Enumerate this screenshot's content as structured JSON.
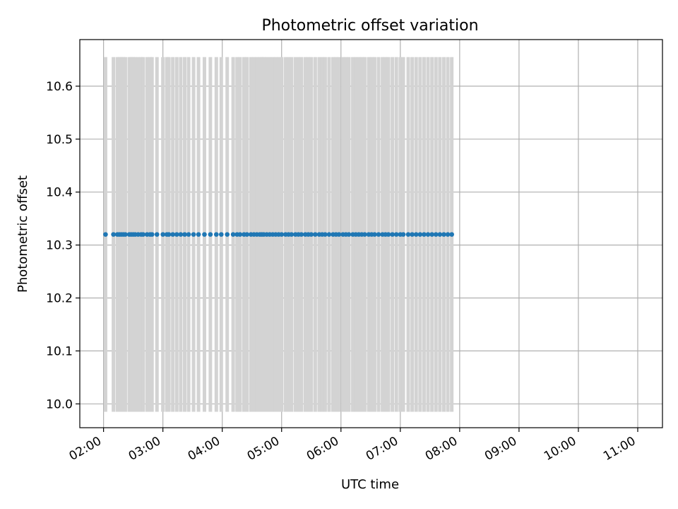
{
  "chart_data": {
    "type": "scatter",
    "title": "Photometric offset variation",
    "xlabel": "UTC time",
    "ylabel": "Photometric offset",
    "x_unit": "time (UTC, HH:MM)",
    "xlim": [
      "01:36",
      "11:25"
    ],
    "ylim": [
      9.955,
      10.688
    ],
    "x_ticks": [
      "02:00",
      "03:00",
      "04:00",
      "05:00",
      "06:00",
      "07:00",
      "08:00",
      "09:00",
      "10:00",
      "11:00"
    ],
    "y_ticks": [
      "10.0",
      "10.1",
      "10.2",
      "10.3",
      "10.4",
      "10.5",
      "10.6"
    ],
    "grid": true,
    "colors": {
      "points": "#1f77b4",
      "error_bars": "#d3d3d3",
      "grid": "#b0b0b0",
      "axes": "#000000"
    },
    "series": [
      {
        "value": 10.32,
        "error": 0.335,
        "times": [
          "02:02",
          "02:10",
          "02:14",
          "02:16",
          "02:18",
          "02:20",
          "02:22",
          "02:26",
          "02:28",
          "02:30",
          "02:32",
          "02:35",
          "02:38",
          "02:40",
          "02:44",
          "02:47",
          "02:49",
          "02:54",
          "03:00",
          "03:04",
          "03:06",
          "03:10",
          "03:14",
          "03:18",
          "03:22",
          "03:26",
          "03:31",
          "03:36",
          "03:42",
          "03:48",
          "03:54",
          "03:59",
          "04:05",
          "04:11",
          "04:15",
          "04:18",
          "04:22",
          "04:25",
          "04:29",
          "04:32",
          "04:35",
          "04:38",
          "04:40",
          "04:42",
          "04:45",
          "04:48",
          "04:51",
          "04:54",
          "04:57",
          "05:00",
          "05:04",
          "05:07",
          "05:10",
          "05:14",
          "05:17",
          "05:20",
          "05:24",
          "05:27",
          "05:30",
          "05:34",
          "05:38",
          "05:41",
          "05:44",
          "05:48",
          "05:52",
          "05:55",
          "05:58",
          "06:02",
          "06:05",
          "06:08",
          "06:12",
          "06:15",
          "06:18",
          "06:21",
          "06:24",
          "06:28",
          "06:31",
          "06:34",
          "06:38",
          "06:42",
          "06:45",
          "06:48",
          "06:52",
          "06:56",
          "07:00",
          "07:03",
          "07:08",
          "07:12",
          "07:16",
          "07:20",
          "07:24",
          "07:28",
          "07:32",
          "07:36",
          "07:40",
          "07:44",
          "07:48",
          "07:52"
        ]
      }
    ]
  }
}
